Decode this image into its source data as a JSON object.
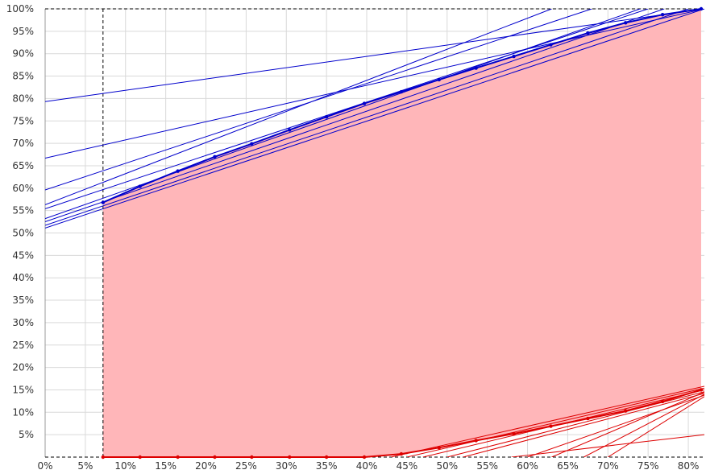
{
  "chart_data": {
    "type": "area",
    "title": "",
    "xlabel": "",
    "ylabel": "",
    "xlim": [
      0,
      82
    ],
    "ylim": [
      0,
      100
    ],
    "grid": true,
    "x_ticks": [
      {
        "value": 0,
        "label": "0%"
      },
      {
        "value": 5,
        "label": "5%"
      },
      {
        "value": 10,
        "label": "10%"
      },
      {
        "value": 15,
        "label": "15%"
      },
      {
        "value": 20,
        "label": "20%"
      },
      {
        "value": 25,
        "label": "25%"
      },
      {
        "value": 30,
        "label": "30%"
      },
      {
        "value": 35,
        "label": "35%"
      },
      {
        "value": 40,
        "label": "40%"
      },
      {
        "value": 45,
        "label": "45%"
      },
      {
        "value": 50,
        "label": "50%"
      },
      {
        "value": 55,
        "label": "55%"
      },
      {
        "value": 60,
        "label": "60%"
      },
      {
        "value": 65,
        "label": "65%"
      },
      {
        "value": 70,
        "label": "70%"
      },
      {
        "value": 75,
        "label": "75%"
      },
      {
        "value": 80,
        "label": "80%"
      }
    ],
    "y_ticks": [
      {
        "value": 5,
        "label": "5%"
      },
      {
        "value": 10,
        "label": "10%"
      },
      {
        "value": 15,
        "label": "15%"
      },
      {
        "value": 20,
        "label": "20%"
      },
      {
        "value": 25,
        "label": "25%"
      },
      {
        "value": 30,
        "label": "30%"
      },
      {
        "value": 35,
        "label": "35%"
      },
      {
        "value": 40,
        "label": "40%"
      },
      {
        "value": 45,
        "label": "45%"
      },
      {
        "value": 50,
        "label": "50%"
      },
      {
        "value": 55,
        "label": "55%"
      },
      {
        "value": 60,
        "label": "60%"
      },
      {
        "value": 65,
        "label": "65%"
      },
      {
        "value": 70,
        "label": "70%"
      },
      {
        "value": 75,
        "label": "75%"
      },
      {
        "value": 80,
        "label": "80%"
      },
      {
        "value": 85,
        "label": "85%"
      },
      {
        "value": 90,
        "label": "90%"
      },
      {
        "value": 95,
        "label": "95%"
      },
      {
        "value": 100,
        "label": "100%"
      }
    ],
    "reference_lines": {
      "vertical_x": 7.2,
      "horizontal_y": [
        100,
        0
      ]
    },
    "series": [
      {
        "color": "#0000cc",
        "points": [
          [
            7.2,
            56.8
          ],
          [
            11.8,
            60.4
          ],
          [
            16.5,
            63.8
          ],
          [
            21.1,
            67.0
          ],
          [
            25.7,
            69.9
          ],
          [
            30.4,
            73.0
          ],
          [
            35.0,
            75.9
          ],
          [
            39.7,
            78.9
          ],
          [
            44.3,
            81.5
          ],
          [
            49.0,
            84.2
          ],
          [
            53.6,
            86.8
          ],
          [
            58.3,
            89.4
          ],
          [
            62.9,
            92.0
          ],
          [
            67.5,
            94.6
          ],
          [
            72.2,
            96.9
          ],
          [
            76.8,
            98.7
          ],
          [
            81.6,
            100
          ]
        ]
      },
      {
        "color": "#dd0000",
        "points": [
          [
            7.2,
            0
          ],
          [
            11.8,
            0
          ],
          [
            16.5,
            0
          ],
          [
            21.1,
            0
          ],
          [
            25.7,
            0
          ],
          [
            30.4,
            0
          ],
          [
            35.0,
            0
          ],
          [
            39.7,
            0
          ],
          [
            44.3,
            0.7
          ],
          [
            49.0,
            2.1
          ],
          [
            53.6,
            3.7
          ],
          [
            58.3,
            5.2
          ],
          [
            62.9,
            6.9
          ],
          [
            67.5,
            8.6
          ],
          [
            72.2,
            10.3
          ],
          [
            76.8,
            12.4
          ],
          [
            81.6,
            15.0
          ]
        ]
      }
    ],
    "shaded_region": {
      "color": "#ffb6b9",
      "between": [
        "upper",
        "lower"
      ],
      "from_x": 7.2
    },
    "tangent_lines_upper": [
      [
        [
          0,
          79.3
        ],
        [
          82,
          100
        ]
      ],
      [
        [
          0,
          66.7
        ],
        [
          82,
          100
        ]
      ],
      [
        [
          0,
          59.6
        ],
        [
          68,
          100
        ]
      ],
      [
        [
          0,
          56.3
        ],
        [
          63,
          100
        ]
      ],
      [
        [
          0,
          55.4
        ],
        [
          75,
          100
        ]
      ],
      [
        [
          0,
          53.2
        ],
        [
          74,
          100
        ]
      ],
      [
        [
          0,
          52.5
        ],
        [
          77,
          100
        ]
      ],
      [
        [
          0,
          51.7
        ],
        [
          80,
          100
        ]
      ],
      [
        [
          0,
          51.1
        ],
        [
          82,
          100
        ]
      ]
    ],
    "tangent_lines_lower": [
      [
        [
          82,
          5.0
        ],
        [
          58,
          0
        ]
      ],
      [
        [
          82,
          14.5
        ],
        [
          63,
          0
        ]
      ],
      [
        [
          82,
          14.0
        ],
        [
          67,
          0
        ]
      ],
      [
        [
          82,
          13.5
        ],
        [
          70,
          0
        ]
      ],
      [
        [
          82,
          13.8
        ],
        [
          60,
          0
        ]
      ],
      [
        [
          82,
          14.2
        ],
        [
          52,
          0
        ]
      ],
      [
        [
          82,
          14.6
        ],
        [
          50,
          0
        ]
      ],
      [
        [
          82,
          15.0
        ],
        [
          47,
          0
        ]
      ],
      [
        [
          82,
          15.4
        ],
        [
          45,
          0
        ]
      ],
      [
        [
          82,
          15.8
        ],
        [
          43,
          0
        ]
      ]
    ]
  }
}
